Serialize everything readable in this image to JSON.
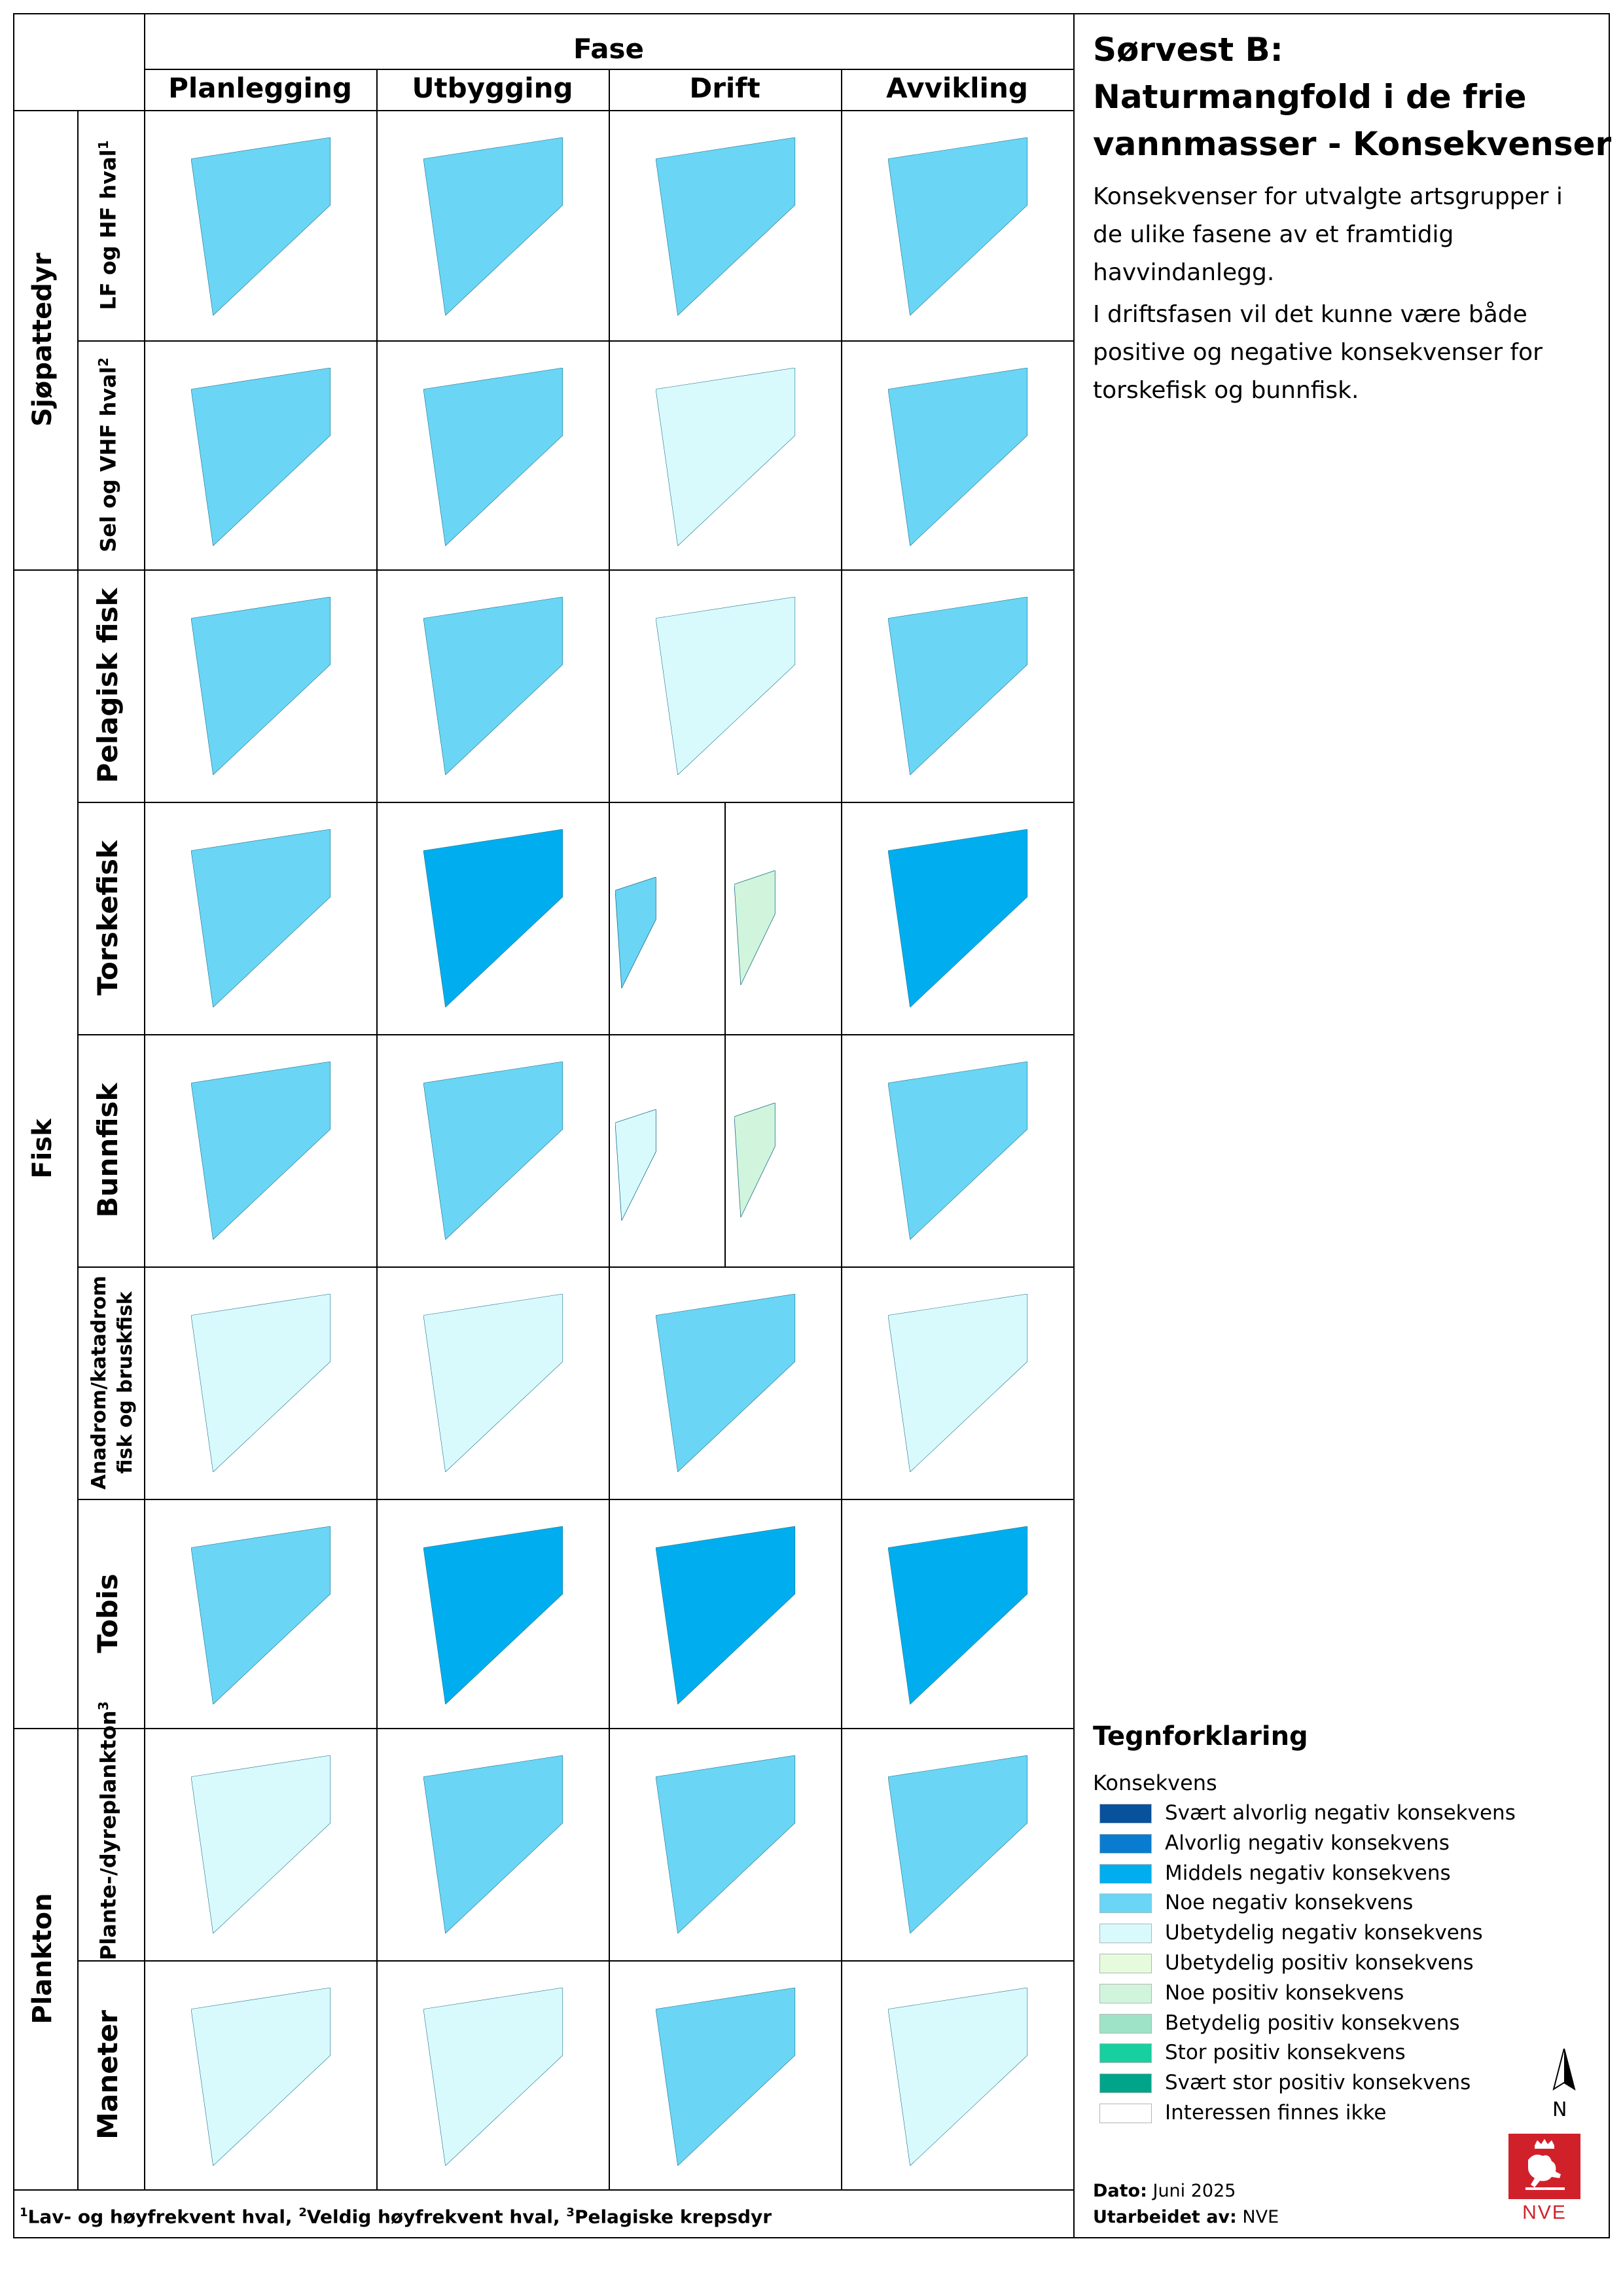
{
  "header": {
    "fase": "Fase",
    "phases": [
      "Planlegging",
      "Utbygging",
      "Drift",
      "Avvikling"
    ]
  },
  "groups": [
    "Sjøpattedyr",
    "Fisk",
    "Plankton"
  ],
  "rows": [
    {
      "label": "LF og HF hval",
      "sup": "1",
      "group": 0,
      "levels": [
        "noe_neg",
        "noe_neg",
        "noe_neg",
        "noe_neg"
      ]
    },
    {
      "label": "Sel og VHF hval",
      "sup": "2",
      "group": 0,
      "levels": [
        "noe_neg",
        "noe_neg",
        "ubetydelig_neg",
        "noe_neg"
      ]
    },
    {
      "label": "Pelagisk fisk",
      "sup": "",
      "group": 1,
      "levels": [
        "noe_neg",
        "noe_neg",
        "ubetydelig_neg",
        "noe_neg"
      ]
    },
    {
      "label": "Torskefisk",
      "sup": "",
      "group": 1,
      "levels": [
        "noe_neg",
        "middels_neg",
        [
          "noe_neg",
          "noe_pos"
        ],
        "middels_neg"
      ]
    },
    {
      "label": "Bunnfisk",
      "sup": "",
      "group": 1,
      "levels": [
        "noe_neg",
        "noe_neg",
        [
          "ubetydelig_neg",
          "noe_pos"
        ],
        "noe_neg"
      ]
    },
    {
      "label": "Anadrom/katadrom fisk og bruskfisk",
      "sup": "",
      "group": 1,
      "levels": [
        "ubetydelig_neg",
        "ubetydelig_neg",
        "noe_neg",
        "ubetydelig_neg"
      ]
    },
    {
      "label": "Tobis",
      "sup": "",
      "group": 1,
      "levels": [
        "noe_neg",
        "middels_neg",
        "middels_neg",
        "middels_neg"
      ]
    },
    {
      "label": "Plante-/dyreplankton",
      "sup": "3",
      "group": 2,
      "levels": [
        "ubetydelig_neg",
        "noe_neg",
        "noe_neg",
        "noe_neg"
      ]
    },
    {
      "label": "Maneter",
      "sup": "",
      "group": 2,
      "levels": [
        "ubetydelig_neg",
        "ubetydelig_neg",
        "noe_neg",
        "ubetydelig_neg"
      ]
    }
  ],
  "title": {
    "line1": "Sørvest B:",
    "line2": "Naturmangfold i de frie",
    "line3": "vannmasser - Konsekvenser"
  },
  "description": {
    "p1": "Konsekvenser for utvalgte artsgrupper i de ulike fasene av et framtidig havvindanlegg.",
    "p2": "I driftsfasen vil det kunne være både positive og negative konsekvenser for torskefisk og bunnfisk."
  },
  "legend": {
    "title": "Tegnforklaring",
    "subtitle": "Konsekvens",
    "items": [
      {
        "key": "svaert_alvorlig_neg",
        "label": "Svært alvorlig negativ konsekvens",
        "color": "#08519c"
      },
      {
        "key": "alvorlig_neg",
        "label": "Alvorlig negativ konsekvens",
        "color": "#0a7ccf"
      },
      {
        "key": "middels_neg",
        "label": "Middels negativ konsekvens",
        "color": "#00aeef"
      },
      {
        "key": "noe_neg",
        "label": "Noe negativ konsekvens",
        "color": "#6bd5f5"
      },
      {
        "key": "ubetydelig_neg",
        "label": "Ubetydelig negativ konsekvens",
        "color": "#d8fafd"
      },
      {
        "key": "ubetydelig_pos",
        "label": "Ubetydelig positiv konsekvens",
        "color": "#e6fbdc"
      },
      {
        "key": "noe_pos",
        "label": "Noe positiv konsekvens",
        "color": "#d0f5dc"
      },
      {
        "key": "betydelig_pos",
        "label": "Betydelig positiv konsekvens",
        "color": "#9ee3c7"
      },
      {
        "key": "stor_pos",
        "label": "Stor positiv konsekvens",
        "color": "#18cfa0"
      },
      {
        "key": "svaert_stor_pos",
        "label": "Svært stor positiv konsekvens",
        "color": "#00a488"
      },
      {
        "key": "finnes_ikke",
        "label": "Interessen finnes ikke",
        "color": "#ffffff"
      }
    ]
  },
  "north_label": "N",
  "dato_label": "Dato:",
  "dato_value": "Juni 2025",
  "utarbeidet_label": "Utarbeidet av:",
  "utarbeidet_value": "NVE",
  "logo_text": "NVE",
  "footnote": {
    "s1": "1",
    "t1": "Lav- og høyfrekvent hval, ",
    "s2": "2",
    "t2": "Veldig høyfrekvent hval, ",
    "s3": "3",
    "t3": "Pelagiske krepsdyr"
  }
}
